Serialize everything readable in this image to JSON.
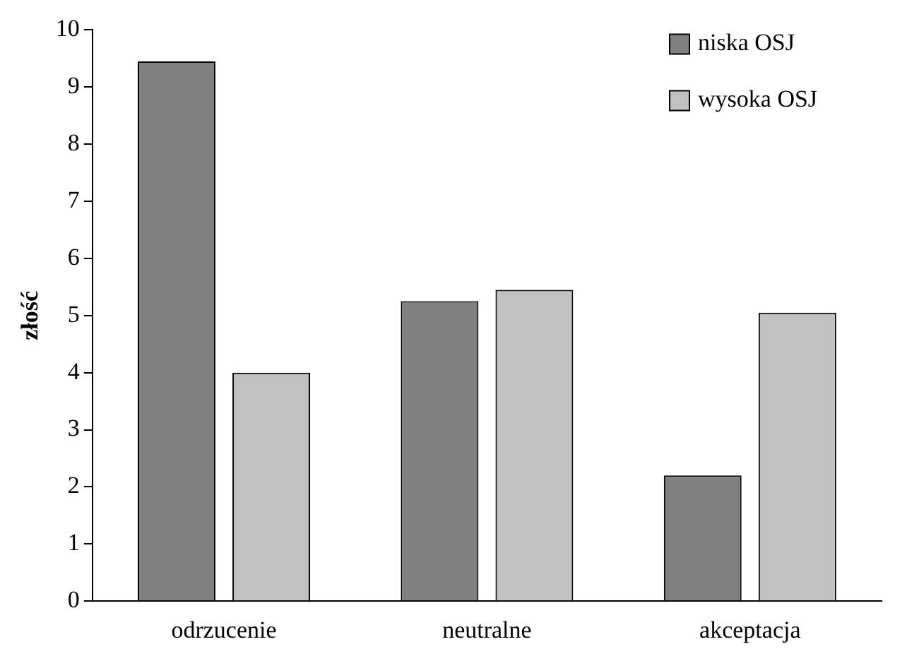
{
  "chart_data": {
    "type": "bar",
    "ylabel": "złość",
    "categories": [
      "odrzucenie",
      "neutralne",
      "akceptacja"
    ],
    "series": [
      {
        "name": "niska OSJ",
        "color": "#808080",
        "values": [
          9.45,
          5.25,
          2.2
        ]
      },
      {
        "name": "wysoka OSJ",
        "color": "#c0c0c0",
        "values": [
          4.0,
          5.45,
          5.05
        ]
      }
    ],
    "ylim": [
      0,
      10
    ],
    "yticks": [
      0,
      1,
      2,
      3,
      4,
      5,
      6,
      7,
      8,
      9,
      10
    ],
    "grid": false,
    "legend": "top right"
  }
}
